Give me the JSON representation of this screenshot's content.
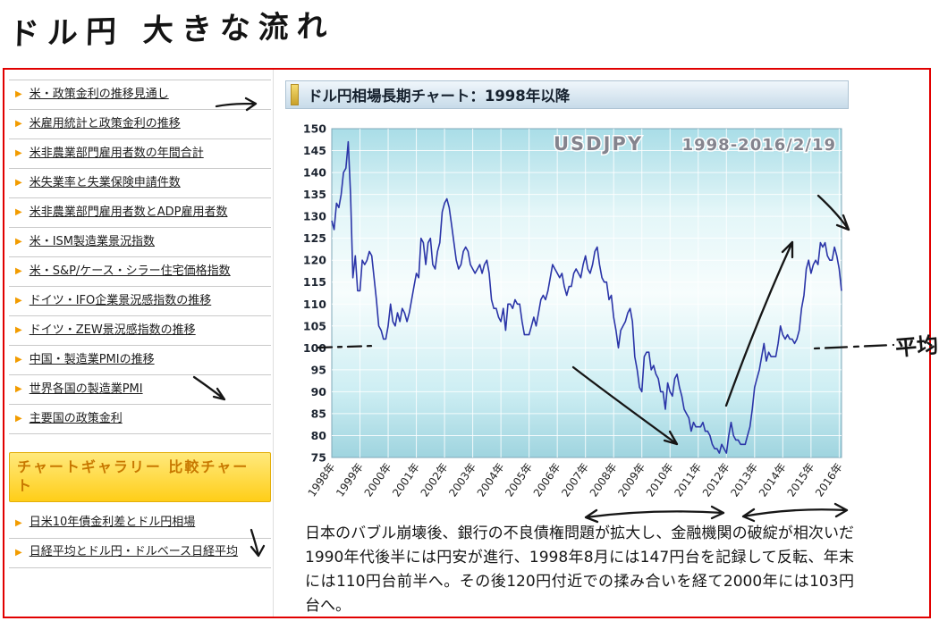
{
  "annotations": {
    "handwritten_title": "ドル円 大きな流れ",
    "average_label": "平均",
    "ink_color": "#161616",
    "arrows": [
      "right-arrow-next-to-us-policy-rate-link",
      "down-right-arrow-next-to-china-pmi-link",
      "down-arrow-next-to-yield-spread-link",
      "downtrend-arrow-on-chart",
      "uptrend-arrow-on-chart",
      "down-right-arrow-top-right-of-chart",
      "dashed-average-line-left",
      "dashed-average-line-right",
      "double-headed-underline-arrow-1",
      "double-headed-underline-arrow-2"
    ]
  },
  "sidebar": {
    "bullet_color": "#f29c00",
    "items": [
      "米・政策金利の推移見通し",
      "米雇用統計と政策金利の推移",
      "米非農業部門雇用者数の年間合計",
      "米失業率と失業保険申請件数",
      "米非農業部門雇用者数とADP雇用者数",
      "米・ISM製造業景況指数",
      "米・S&P/ケース・シラー住宅価格指数",
      "ドイツ・IFO企業景況感指数の推移",
      "ドイツ・ZEW景況感指数の推移",
      "中国・製造業PMIの推移",
      "世界各国の製造業PMI",
      "主要国の政策金利"
    ],
    "section_header": "チャートギャラリー 比較チャート",
    "gallery_items": [
      "日米10年債金利差とドル円相場",
      "日経平均とドル円・ドルベース日経平均"
    ]
  },
  "main": {
    "chart_header": "ドル円相場長期チャート：1998年以降",
    "paragraph": "日本のバブル崩壊後、銀行の不良債権問題が拡大し、金融機関の破綻が相次いだ1990年代後半には円安が進行、1998年8月には147円台を記録して反転、年末には110円台前半へ。その後120円付近での揉み合いを経て2000年には103円台へ。"
  },
  "chart_data": {
    "type": "line",
    "title": "USDJPY",
    "date_range_label": "1998-2016/2/19",
    "x_tick_labels": [
      "1998年",
      "1999年",
      "2000年",
      "2001年",
      "2002年",
      "2003年",
      "2004年",
      "2005年",
      "2006年",
      "2007年",
      "2008年",
      "2009年",
      "2010年",
      "2011年",
      "2012年",
      "2013年",
      "2014年",
      "2015年",
      "2016年"
    ],
    "points_per_year": 12,
    "ylim": [
      75,
      150
    ],
    "y_tick_step": 5,
    "grid": true,
    "line_color": "#2b35a8",
    "series": [
      {
        "name": "USDJPY monthly (approx)",
        "values": [
          129,
          127,
          133,
          132,
          135,
          140,
          141,
          147,
          135,
          116,
          121,
          113,
          113,
          120,
          119,
          120,
          122,
          121,
          116,
          111,
          105,
          104,
          102,
          102,
          105,
          110,
          106,
          105,
          108,
          106,
          109,
          108,
          106,
          108,
          111,
          114,
          117,
          116,
          125,
          124,
          119,
          124,
          125,
          119,
          118,
          122,
          124,
          131,
          133,
          134,
          132,
          128,
          124,
          120,
          118,
          119,
          122,
          123,
          122,
          119,
          118,
          117,
          118,
          119,
          117,
          119,
          120,
          117,
          111,
          109,
          109,
          107,
          106,
          109,
          104,
          110,
          110,
          109,
          111,
          110,
          110,
          106,
          103,
          103,
          103,
          105,
          107,
          105,
          108,
          111,
          112,
          111,
          113,
          116,
          119,
          118,
          117,
          116,
          117,
          114,
          112,
          114,
          114,
          117,
          118,
          117,
          116,
          119,
          121,
          118,
          117,
          119,
          122,
          123,
          119,
          116,
          115,
          115,
          111,
          112,
          107,
          104,
          100,
          104,
          105,
          106,
          108,
          109,
          106,
          98,
          95,
          91,
          90,
          98,
          99,
          99,
          95,
          96,
          94,
          93,
          90,
          90,
          86,
          92,
          90,
          89,
          93,
          94,
          91,
          89,
          86,
          85,
          84,
          81,
          83,
          82,
          82,
          82,
          83,
          81,
          81,
          80,
          78,
          77,
          77,
          76,
          78,
          77,
          76,
          80,
          83,
          80,
          79,
          79,
          78,
          78,
          78,
          80,
          82,
          86,
          91,
          93,
          95,
          98,
          101,
          97,
          99,
          98,
          98,
          98,
          101,
          105,
          103,
          102,
          103,
          102,
          102,
          101,
          102,
          104,
          109,
          112,
          118,
          120,
          117,
          119,
          120,
          119,
          124,
          123,
          124,
          121,
          120,
          120,
          123,
          121,
          118,
          113
        ]
      }
    ]
  }
}
